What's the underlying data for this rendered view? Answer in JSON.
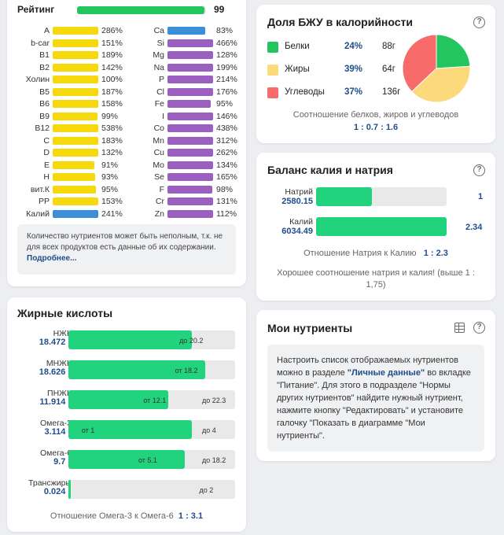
{
  "rating": {
    "label": "Рейтинг",
    "value": "99",
    "fraction": 0.99,
    "color": "#22c55e"
  },
  "nutrients_left": [
    {
      "name": "A",
      "pct": "286%",
      "level": 1.0,
      "color": "#f5d90a"
    },
    {
      "name": "b-car",
      "pct": "151%",
      "level": 1.0,
      "color": "#f5d90a"
    },
    {
      "name": "B1",
      "pct": "189%",
      "level": 1.0,
      "color": "#f5d90a"
    },
    {
      "name": "B2",
      "pct": "142%",
      "level": 1.0,
      "color": "#f5d90a"
    },
    {
      "name": "Холин",
      "pct": "100%",
      "level": 1.0,
      "color": "#f5d90a"
    },
    {
      "name": "B5",
      "pct": "187%",
      "level": 1.0,
      "color": "#f5d90a"
    },
    {
      "name": "B6",
      "pct": "158%",
      "level": 1.0,
      "color": "#f5d90a"
    },
    {
      "name": "B9",
      "pct": "99%",
      "level": 0.99,
      "color": "#f5d90a"
    },
    {
      "name": "B12",
      "pct": "538%",
      "level": 1.0,
      "color": "#f5d90a"
    },
    {
      "name": "C",
      "pct": "183%",
      "level": 1.0,
      "color": "#f5d90a"
    },
    {
      "name": "D",
      "pct": "132%",
      "level": 1.0,
      "color": "#f5d90a"
    },
    {
      "name": "E",
      "pct": "91%",
      "level": 0.91,
      "color": "#f5d90a"
    },
    {
      "name": "H",
      "pct": "93%",
      "level": 0.93,
      "color": "#f5d90a"
    },
    {
      "name": "вит.К",
      "pct": "95%",
      "level": 0.95,
      "color": "#f5d90a"
    },
    {
      "name": "PP",
      "pct": "153%",
      "level": 1.0,
      "color": "#f5d90a"
    },
    {
      "name": "Калий",
      "pct": "241%",
      "level": 1.0,
      "color": "#3b8fd9"
    }
  ],
  "nutrients_right": [
    {
      "name": "Ca",
      "pct": "83%",
      "level": 0.83,
      "color": "#3b8fd9"
    },
    {
      "name": "Si",
      "pct": "466%",
      "level": 1.0,
      "color": "#9b5fc0"
    },
    {
      "name": "Mg",
      "pct": "128%",
      "level": 1.0,
      "color": "#9b5fc0"
    },
    {
      "name": "Na",
      "pct": "199%",
      "level": 1.0,
      "color": "#9b5fc0"
    },
    {
      "name": "P",
      "pct": "214%",
      "level": 1.0,
      "color": "#9b5fc0"
    },
    {
      "name": "Cl",
      "pct": "176%",
      "level": 1.0,
      "color": "#9b5fc0"
    },
    {
      "name": "Fe",
      "pct": "95%",
      "level": 0.95,
      "color": "#9b5fc0"
    },
    {
      "name": "I",
      "pct": "146%",
      "level": 1.0,
      "color": "#9b5fc0"
    },
    {
      "name": "Co",
      "pct": "438%",
      "level": 1.0,
      "color": "#9b5fc0"
    },
    {
      "name": "Mn",
      "pct": "312%",
      "level": 1.0,
      "color": "#9b5fc0"
    },
    {
      "name": "Cu",
      "pct": "262%",
      "level": 1.0,
      "color": "#9b5fc0"
    },
    {
      "name": "Mo",
      "pct": "134%",
      "level": 1.0,
      "color": "#9b5fc0"
    },
    {
      "name": "Se",
      "pct": "165%",
      "level": 1.0,
      "color": "#9b5fc0"
    },
    {
      "name": "F",
      "pct": "98%",
      "level": 0.98,
      "color": "#9b5fc0"
    },
    {
      "name": "Cr",
      "pct": "131%",
      "level": 1.0,
      "color": "#9b5fc0"
    },
    {
      "name": "Zn",
      "pct": "112%",
      "level": 1.0,
      "color": "#9b5fc0"
    }
  ],
  "rating_note": {
    "text": "Количество нутриентов может быть неполным, т.к. не для всех продуктов есть данные об их содержании.",
    "link": "Подробнее..."
  },
  "fatty_acids": {
    "title": "Жирные кислоты",
    "rows": [
      {
        "name": "НЖК",
        "value": "18.472 г",
        "fill": 0.74,
        "from": "",
        "to": "до 20.2",
        "to_pos": 0.76
      },
      {
        "name": "МНЖК",
        "value": "18.626 г",
        "fill": 0.82,
        "from": "от 18.2",
        "to": "",
        "from_pos": 0.8
      },
      {
        "name": "ПНЖК",
        "value": "11.914 г",
        "fill": 0.6,
        "from": "от 12.1",
        "to": "до 22.3",
        "from_pos": 0.61,
        "to_pos": 1.0
      },
      {
        "name": "Омега-3",
        "value": "3.114 г",
        "fill": 0.74,
        "from": "от 1",
        "to": "до 4",
        "from_pos": 0.24,
        "to_pos": 0.96
      },
      {
        "name": "Омега-6",
        "value": "9.7 г",
        "fill": 0.7,
        "from": "от 5.1",
        "to": "до 18.2",
        "from_pos": 0.58,
        "to_pos": 0.97
      },
      {
        "name": "Трансжиры",
        "value": "0.024 г",
        "fill": 0.01,
        "from": "",
        "to": "до 2",
        "to_pos": 0.88
      }
    ],
    "ratio_label": "Отношение Омега-3 к Омега-6",
    "ratio_value": "1 : 3.1"
  },
  "bju": {
    "title": "Доля БЖУ в калорийности",
    "items": [
      {
        "name": "Белки",
        "pct": "24%",
        "grams": "88г",
        "share": 24,
        "color": "#22c55e"
      },
      {
        "name": "Жиры",
        "pct": "39%",
        "grams": "64г",
        "share": 39,
        "color": "#fcd97a"
      },
      {
        "name": "Углеводы",
        "pct": "37%",
        "grams": "136г",
        "share": 37,
        "color": "#f76b6b"
      }
    ],
    "caption": "Соотношение белков, жиров и углеводов",
    "ratio": "1 : 0.7 : 1.6"
  },
  "balance": {
    "title": "Баланс калия и натрия",
    "sodium": {
      "name": "Натрий",
      "value": "2580.15",
      "fill": 0.43,
      "ratio": "1"
    },
    "potassium": {
      "name": "Калий",
      "value": "6034.49",
      "fill": 1.0,
      "ratio": "2.34"
    },
    "relation_label": "Отношение Натрия к Калию",
    "relation_value": "1 : 2.3",
    "comment": "Хорошее соотношение натрия и калия! (выше 1 : 1,75)"
  },
  "my_nutrients": {
    "title": "Мои нутриенты",
    "text_1": "Настроить список отображаемых нутриентов можно в разделе ",
    "link": "\"Личные данные\"",
    "text_2": " во вкладке \"Питание\". Для этого в подразделе \"Нормы других нутриентов\" найдите нужный нутриент, нажмите кнопку \"Редактировать\" и установите галочку \"Показать в диаграмме \"Мои нутриенты\"."
  },
  "help_icon": "?"
}
